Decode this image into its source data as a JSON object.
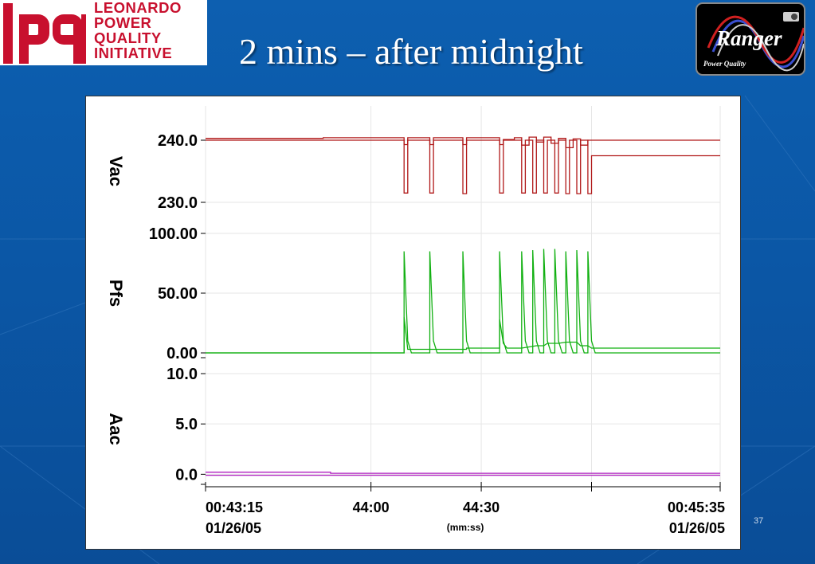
{
  "header": {
    "org_logo_lines": [
      "LEONARDO",
      "POWER",
      "QUALITY",
      "INITIATIVE"
    ],
    "title": "2 mins – after midnight",
    "instrument_logo": {
      "name": "Ranger",
      "tagline": "Power Quality"
    }
  },
  "page_number": "37",
  "colors": {
    "background": "#0b57a6",
    "vac": "#b01818",
    "pfs": "#12b012",
    "aac": "#b020c0",
    "logo_red": "#c8102e"
  },
  "chart_data": {
    "type": "line",
    "title": "",
    "x_axis": {
      "unit_label": "(mm:ss)",
      "start_label": "00:43:15",
      "start_date": "01/26/05",
      "end_label": "00:45:35",
      "end_date": "01/26/05",
      "tick_labels": [
        {
          "t": "44:00",
          "label": "44:00"
        },
        {
          "t": "44:30",
          "label": "44:30"
        }
      ],
      "range": [
        "00:43:15",
        "00:45:35"
      ]
    },
    "panels": [
      {
        "name": "vac",
        "ylabel": "Vac",
        "ylim": [
          230.0,
          240.0
        ],
        "ytick_labels": [
          "240.0",
          "230.0"
        ],
        "series": [
          {
            "points": [
              [
                "43:15",
                240.3
              ],
              [
                "43:47",
                240.3
              ],
              [
                "43:47",
                240.4
              ],
              [
                "44:09",
                240.4
              ],
              [
                "44:09",
                239.3
              ],
              [
                "44:10",
                239.3
              ],
              [
                "44:10",
                240.4
              ],
              [
                "44:16",
                240.4
              ],
              [
                "44:16",
                239.3
              ],
              [
                "44:17",
                239.3
              ],
              [
                "44:17",
                240.4
              ],
              [
                "44:25",
                240.4
              ],
              [
                "44:25",
                239.3
              ],
              [
                "44:26",
                239.3
              ],
              [
                "44:26",
                240.4
              ],
              [
                "44:35",
                240.4
              ],
              [
                "44:35",
                239.3
              ],
              [
                "44:36",
                239.3
              ],
              [
                "44:36",
                240.1
              ],
              [
                "44:39",
                240.1
              ],
              [
                "44:39",
                240.4
              ],
              [
                "44:41",
                240.4
              ],
              [
                "44:41",
                239.2
              ],
              [
                "44:43",
                239.2
              ],
              [
                "44:43",
                240.5
              ],
              [
                "44:45",
                240.5
              ],
              [
                "44:45",
                239.7
              ],
              [
                "44:47",
                239.7
              ],
              [
                "44:47",
                240.5
              ],
              [
                "44:49",
                240.5
              ],
              [
                "44:49",
                239.5
              ],
              [
                "44:51",
                239.5
              ],
              [
                "44:51",
                240.3
              ],
              [
                "44:53",
                240.3
              ],
              [
                "44:53",
                238.8
              ],
              [
                "44:55",
                238.8
              ],
              [
                "44:55",
                240.2
              ],
              [
                "44:57",
                240.2
              ],
              [
                "44:57",
                239.2
              ],
              [
                "44:59",
                239.2
              ],
              [
                "44:59",
                240.0
              ],
              [
                "45:35",
                240.0
              ]
            ]
          },
          {
            "points": [
              [
                "43:15",
                240.0
              ],
              [
                "44:09",
                240.0
              ],
              [
                "44:09",
                231.5
              ],
              [
                "44:10",
                231.5
              ],
              [
                "44:10",
                240.0
              ],
              [
                "44:16",
                240.0
              ],
              [
                "44:16",
                231.5
              ],
              [
                "44:17",
                231.5
              ],
              [
                "44:17",
                240.0
              ],
              [
                "44:25",
                240.0
              ],
              [
                "44:25",
                231.4
              ],
              [
                "44:26",
                231.4
              ],
              [
                "44:26",
                240.0
              ],
              [
                "44:35",
                240.0
              ],
              [
                "44:35",
                231.5
              ],
              [
                "44:36",
                231.5
              ],
              [
                "44:36",
                240.0
              ],
              [
                "44:41",
                240.0
              ],
              [
                "44:41",
                231.5
              ],
              [
                "44:42",
                231.5
              ],
              [
                "44:42",
                240.0
              ],
              [
                "44:44",
                240.0
              ],
              [
                "44:44",
                231.5
              ],
              [
                "44:45",
                231.5
              ],
              [
                "44:45",
                240.0
              ],
              [
                "44:47",
                240.0
              ],
              [
                "44:47",
                231.5
              ],
              [
                "44:48",
                231.5
              ],
              [
                "44:48",
                240.0
              ],
              [
                "44:50",
                240.0
              ],
              [
                "44:50",
                231.5
              ],
              [
                "44:51",
                231.5
              ],
              [
                "44:51",
                240.0
              ],
              [
                "44:53",
                240.0
              ],
              [
                "44:53",
                231.4
              ],
              [
                "44:54",
                231.4
              ],
              [
                "44:54",
                240.0
              ],
              [
                "44:56",
                240.0
              ],
              [
                "44:56",
                231.4
              ],
              [
                "44:57",
                231.4
              ],
              [
                "44:57",
                240.0
              ],
              [
                "44:59",
                240.0
              ],
              [
                "44:59",
                231.4
              ],
              [
                "45:00",
                231.4
              ],
              [
                "45:00",
                237.5
              ],
              [
                "45:35",
                237.5
              ]
            ]
          }
        ]
      },
      {
        "name": "pfs",
        "ylabel": "Pfs",
        "ylim": [
          0.0,
          100.0
        ],
        "ytick_labels": [
          "100.00",
          "50.00",
          "0.00"
        ],
        "series": [
          {
            "points": [
              [
                "43:15",
                0.0
              ],
              [
                "44:09",
                0.0
              ],
              [
                "44:09",
                85.0
              ],
              [
                "44:10",
                10.0
              ],
              [
                "44:11",
                0.0
              ],
              [
                "44:16",
                0.0
              ],
              [
                "44:16",
                85.0
              ],
              [
                "44:17",
                10.0
              ],
              [
                "44:18",
                0.0
              ],
              [
                "44:25",
                0.0
              ],
              [
                "44:25",
                85.0
              ],
              [
                "44:26",
                10.0
              ],
              [
                "44:27",
                0.0
              ],
              [
                "44:35",
                0.0
              ],
              [
                "44:35",
                85.0
              ],
              [
                "44:36",
                10.0
              ],
              [
                "44:37",
                0.0
              ],
              [
                "44:41",
                0.0
              ],
              [
                "44:41",
                85.0
              ],
              [
                "44:42",
                10.0
              ],
              [
                "44:43",
                0.0
              ],
              [
                "44:44",
                0.0
              ],
              [
                "44:44",
                86.0
              ],
              [
                "44:45",
                10.0
              ],
              [
                "44:46",
                0.0
              ],
              [
                "44:47",
                0.0
              ],
              [
                "44:47",
                87.0
              ],
              [
                "44:48",
                10.0
              ],
              [
                "44:49",
                0.0
              ],
              [
                "44:50",
                0.0
              ],
              [
                "44:50",
                87.0
              ],
              [
                "44:51",
                10.0
              ],
              [
                "44:52",
                0.0
              ],
              [
                "44:53",
                0.0
              ],
              [
                "44:53",
                85.0
              ],
              [
                "44:54",
                10.0
              ],
              [
                "44:55",
                0.0
              ],
              [
                "44:56",
                0.0
              ],
              [
                "44:56",
                86.0
              ],
              [
                "44:57",
                10.0
              ],
              [
                "44:58",
                0.0
              ],
              [
                "44:59",
                0.0
              ],
              [
                "44:59",
                85.0
              ],
              [
                "45:00",
                10.0
              ],
              [
                "45:01",
                0.0
              ],
              [
                "45:35",
                0.0
              ]
            ]
          },
          {
            "points": [
              [
                "43:15",
                0.0
              ],
              [
                "44:09",
                0.0
              ],
              [
                "44:09",
                30.0
              ],
              [
                "44:10",
                3.0
              ],
              [
                "44:16",
                3.0
              ],
              [
                "44:16",
                3.0
              ],
              [
                "44:26",
                3.0
              ],
              [
                "44:26",
                4.0
              ],
              [
                "44:35",
                4.0
              ],
              [
                "44:35",
                28.0
              ],
              [
                "44:36",
                8.0
              ],
              [
                "44:37",
                4.0
              ],
              [
                "44:41",
                4.0
              ],
              [
                "44:45",
                6.0
              ],
              [
                "44:47",
                6.0
              ],
              [
                "44:48",
                8.0
              ],
              [
                "44:51",
                8.0
              ],
              [
                "44:53",
                9.0
              ],
              [
                "44:56",
                9.0
              ],
              [
                "44:57",
                6.0
              ],
              [
                "44:59",
                6.0
              ],
              [
                "45:00",
                4.0
              ],
              [
                "45:35",
                4.0
              ]
            ]
          }
        ]
      },
      {
        "name": "aac",
        "ylabel": "Aac",
        "ylim": [
          -1.0,
          10.0
        ],
        "ytick_labels": [
          "10.0",
          "5.0",
          "0.0"
        ],
        "series": [
          {
            "points": [
              [
                "43:15",
                0.2
              ],
              [
                "43:49",
                0.2
              ],
              [
                "43:49",
                0.1
              ],
              [
                "45:35",
                0.1
              ]
            ]
          },
          {
            "points": [
              [
                "43:15",
                -0.1
              ],
              [
                "45:35",
                -0.1
              ]
            ]
          }
        ]
      }
    ],
    "grid": true,
    "legend": "none"
  }
}
